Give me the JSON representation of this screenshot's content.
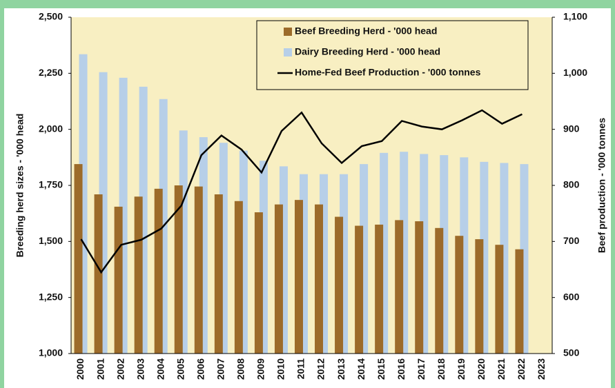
{
  "chart_data": {
    "type": "bar-line",
    "y_label": "Breeding herd sizes - '000 head",
    "y2_label": "Beef production - '000 tonnes",
    "categories": [
      "2000",
      "2001",
      "2002",
      "2003",
      "2004",
      "2005",
      "2006",
      "2007",
      "2008",
      "2009",
      "2010",
      "2011",
      "2012",
      "2013",
      "2014",
      "2015",
      "2016",
      "2017",
      "2018",
      "2019",
      "2020",
      "2021",
      "2022",
      "2023"
    ],
    "series": [
      {
        "name": "Beef Breeding Herd - '000 head",
        "color": "#9c6b2a",
        "type": "bar",
        "values": [
          1845,
          1710,
          1655,
          1700,
          1735,
          1750,
          1745,
          1710,
          1680,
          1630,
          1665,
          1685,
          1665,
          1610,
          1570,
          1575,
          1595,
          1590,
          1560,
          1525,
          1510,
          1485,
          1465,
          null
        ]
      },
      {
        "name": "Dairy Breeding Herd - '000 head",
        "color": "#b7cfe8",
        "type": "bar",
        "values": [
          2335,
          2255,
          2230,
          2190,
          2135,
          1995,
          1965,
          1940,
          1905,
          1860,
          1835,
          1800,
          1800,
          1800,
          1845,
          1895,
          1900,
          1890,
          1885,
          1875,
          1855,
          1850,
          1845,
          null
        ]
      },
      {
        "name": "Home-Fed Beef Production - '000 tonnes",
        "color": "#000000",
        "type": "line",
        "axis": "y2",
        "values": [
          704,
          645,
          694,
          703,
          723,
          764,
          854,
          889,
          864,
          823,
          897,
          930,
          875,
          840,
          870,
          879,
          915,
          905,
          900,
          916,
          934,
          910,
          927,
          null
        ]
      }
    ],
    "ylim": [
      1000,
      2500
    ],
    "yticks": [
      {
        "value": 1000,
        "label": "1,000"
      },
      {
        "value": 1250,
        "label": "1,250"
      },
      {
        "value": 1500,
        "label": "1,500"
      },
      {
        "value": 1750,
        "label": "1,750"
      },
      {
        "value": 2000,
        "label": "2,000"
      },
      {
        "value": 2250,
        "label": "2,250"
      },
      {
        "value": 2500,
        "label": "2,500"
      }
    ],
    "y2lim": [
      500,
      1100
    ],
    "y2ticks": [
      500,
      600,
      700,
      800,
      900,
      {
        "value": 1000,
        "label": "1,000"
      },
      {
        "value": 1100,
        "label": "1,100"
      }
    ]
  }
}
